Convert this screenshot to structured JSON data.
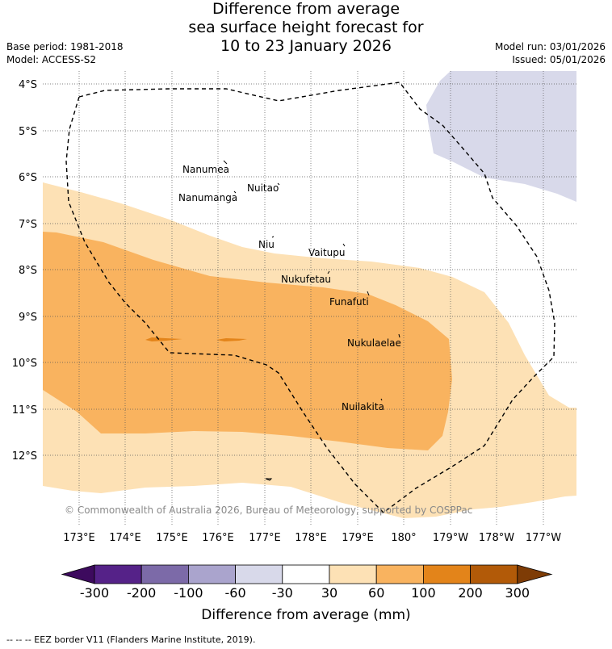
{
  "title": {
    "line1": "Difference from average",
    "line2": "sea surface height forecast for",
    "line3": "10 to 23 January 2026"
  },
  "meta": {
    "base_period": "Base period: 1981-2018",
    "model": "Model: ACCESS-S2",
    "model_run": "Model run: 03/01/2026",
    "issued": "Issued: 05/01/2026"
  },
  "map": {
    "lat_labels": [
      "4°S",
      "5°S",
      "6°S",
      "7°S",
      "8°S",
      "9°S",
      "10°S",
      "11°S",
      "12°S"
    ],
    "lon_labels": [
      "173°E",
      "174°E",
      "175°E",
      "176°E",
      "177°E",
      "178°E",
      "179°E",
      "180°",
      "179°W",
      "178°W",
      "177°W"
    ],
    "islands": [
      "Nanumea",
      "Nuitao",
      "Nanumanga",
      "Niu",
      "Vaitupu",
      "Nukufetau",
      "Funafuti",
      "Nukulaelae",
      "Nuilakita"
    ],
    "copyright": "© Commonwealth of Australia 2026, Bureau of Meteorology, supported by COSPPac",
    "colors": {
      "anom_30_60": "#fde1b5",
      "anom_60_100": "#f9b35f",
      "anom_100_200": "#e3841a",
      "anom_neg_60_30": "#d8d9ea"
    }
  },
  "colorbar": {
    "ticks": [
      "-300",
      "-200",
      "-100",
      "-60",
      "-30",
      "30",
      "60",
      "100",
      "200",
      "300"
    ],
    "colors": [
      "#3d0a5e",
      "#552288",
      "#7c6aa8",
      "#aaa4cd",
      "#d8d9ea",
      "#ffffff",
      "#fde1b5",
      "#f9b35f",
      "#e3841a",
      "#b25a08",
      "#7e3c06"
    ],
    "label": "Difference from average (mm)"
  },
  "footnote": "-- -- -- EEZ border V11 (Flanders Marine Institute, 2019)."
}
